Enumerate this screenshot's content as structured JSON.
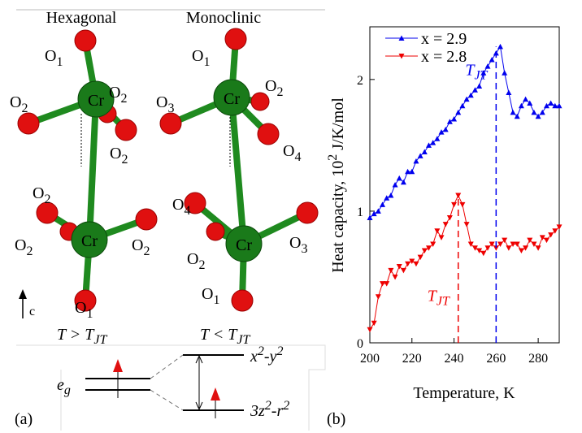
{
  "chart_data": {
    "type": "line",
    "xlabel": "Temperature, K",
    "ylabel": {
      "text": "Heat  capacity, 10",
      "sup": "2",
      "tail": " J/K/mol"
    },
    "panel": "(b)",
    "legend": "upper left",
    "x": [
      200,
      202,
      204,
      206,
      208,
      210,
      212,
      214,
      216,
      218,
      220,
      222,
      224,
      226,
      228,
      230,
      232,
      234,
      236,
      238,
      240,
      242,
      244,
      246,
      248,
      250,
      252,
      254,
      256,
      258,
      260,
      262,
      264,
      266,
      268,
      270,
      272,
      274,
      276,
      278,
      280,
      282,
      284,
      286,
      288,
      290
    ],
    "series": [
      {
        "name": "x = 2.9",
        "color": "#0000ee",
        "marker": "triangle-up",
        "values": [
          0.95,
          0.98,
          1.0,
          1.05,
          1.1,
          1.12,
          1.2,
          1.25,
          1.22,
          1.3,
          1.3,
          1.38,
          1.42,
          1.45,
          1.5,
          1.52,
          1.55,
          1.6,
          1.62,
          1.68,
          1.7,
          1.75,
          1.8,
          1.85,
          1.88,
          1.92,
          1.95,
          2.05,
          2.1,
          2.15,
          2.2,
          2.25,
          2.05,
          1.9,
          1.75,
          1.72,
          1.8,
          1.85,
          1.82,
          1.75,
          1.72,
          1.75,
          1.8,
          1.82,
          1.8,
          1.8
        ]
      },
      {
        "name": "x = 2.8",
        "color": "#ee0000",
        "marker": "triangle-down",
        "values": [
          0.1,
          0.15,
          0.35,
          0.45,
          0.45,
          0.55,
          0.5,
          0.58,
          0.55,
          0.6,
          0.62,
          0.6,
          0.65,
          0.7,
          0.72,
          0.75,
          0.85,
          0.8,
          0.9,
          0.95,
          1.05,
          1.12,
          1.05,
          0.9,
          0.75,
          0.72,
          0.7,
          0.68,
          0.72,
          0.75,
          0.72,
          0.75,
          0.78,
          0.72,
          0.75,
          0.75,
          0.7,
          0.72,
          0.78,
          0.75,
          0.72,
          0.8,
          0.78,
          0.82,
          0.85,
          0.88
        ]
      }
    ],
    "markers": [
      {
        "x": 260,
        "top": 2.25,
        "color": "#0000ee",
        "text": "T",
        "sub": "JT"
      },
      {
        "x": 242,
        "top": 1.12,
        "color": "#ee0000",
        "text": "T",
        "sub": "JT"
      }
    ],
    "xlim": [
      200,
      290
    ],
    "xticks": [
      200,
      220,
      240,
      260,
      280
    ],
    "ylim": [
      0,
      2.4
    ],
    "yticks": [
      0,
      1,
      2
    ]
  },
  "diagram": {
    "panel": "(a)",
    "titles": [
      "Hexagonal",
      "Monoclinic"
    ],
    "atoms": [
      {
        "text": "Cr"
      },
      {
        "text": "Cr"
      },
      {
        "text": "Cr"
      },
      {
        "text": "Cr"
      }
    ],
    "oxygens": [
      {
        "text": "O",
        "sub": "1"
      },
      {
        "text": "O",
        "sub": "2"
      },
      {
        "text": "O",
        "sub": "2"
      },
      {
        "text": "O",
        "sub": "2"
      },
      {
        "text": "O",
        "sub": "2"
      },
      {
        "text": "O",
        "sub": "2"
      },
      {
        "text": "O",
        "sub": "2"
      },
      {
        "text": "O",
        "sub": "1"
      },
      {
        "text": "O",
        "sub": "1"
      },
      {
        "text": "O",
        "sub": "3"
      },
      {
        "text": "O",
        "sub": "2"
      },
      {
        "text": "O",
        "sub": "4"
      },
      {
        "text": "O",
        "sub": "4"
      },
      {
        "text": "O",
        "sub": "2"
      },
      {
        "text": "O",
        "sub": "3"
      },
      {
        "text": "O",
        "sub": "1"
      }
    ],
    "axis": "c",
    "conditions": [
      {
        "text": "T > T",
        "sub": "JT"
      },
      {
        "text": "T < T",
        "sub": "JT"
      }
    ],
    "levels": {
      "eg": {
        "text": "e",
        "sub": "g"
      },
      "upper": {
        "a": "x",
        "s1": "2",
        "b": "-y",
        "s2": "2"
      },
      "lower": {
        "a": "3z",
        "s1": "2",
        "b": "-r",
        "s2": "2"
      }
    }
  }
}
